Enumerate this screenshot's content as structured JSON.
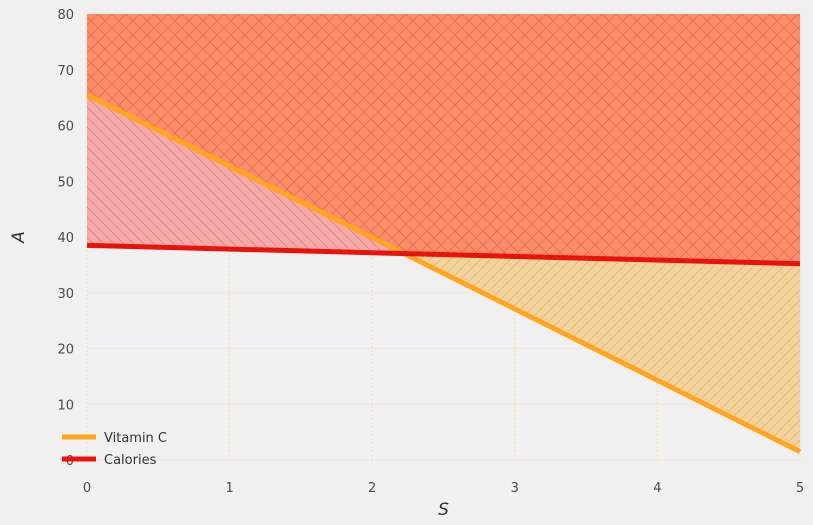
{
  "chart_data": {
    "type": "line",
    "xlabel": "S",
    "ylabel": "A",
    "xlim": [
      0,
      5
    ],
    "ylim": [
      0,
      80
    ],
    "x_ticks": [
      0,
      1,
      2,
      3,
      4,
      5
    ],
    "y_ticks": [
      0,
      10,
      20,
      30,
      40,
      50,
      60,
      70,
      80
    ],
    "grid": true,
    "legend_position": "lower-left",
    "series": [
      {
        "name": "Vitamin C",
        "x": [
          0,
          5
        ],
        "y": [
          65.5,
          1.5
        ],
        "color": "#ffa51e"
      },
      {
        "name": "Calories",
        "x": [
          0,
          5
        ],
        "y": [
          38.5,
          35.2
        ],
        "color": "#e8130b"
      }
    ],
    "regions": [
      {
        "bound_series": "Vitamin C",
        "side": "above",
        "color": "#f5a9a9",
        "hatch": "\\"
      },
      {
        "bound_series": "Calories",
        "side": "above",
        "color": "#f2d39b",
        "hatch": "/"
      },
      {
        "overlap": true,
        "color": "#fc8c6a",
        "hatch": "x"
      }
    ]
  }
}
